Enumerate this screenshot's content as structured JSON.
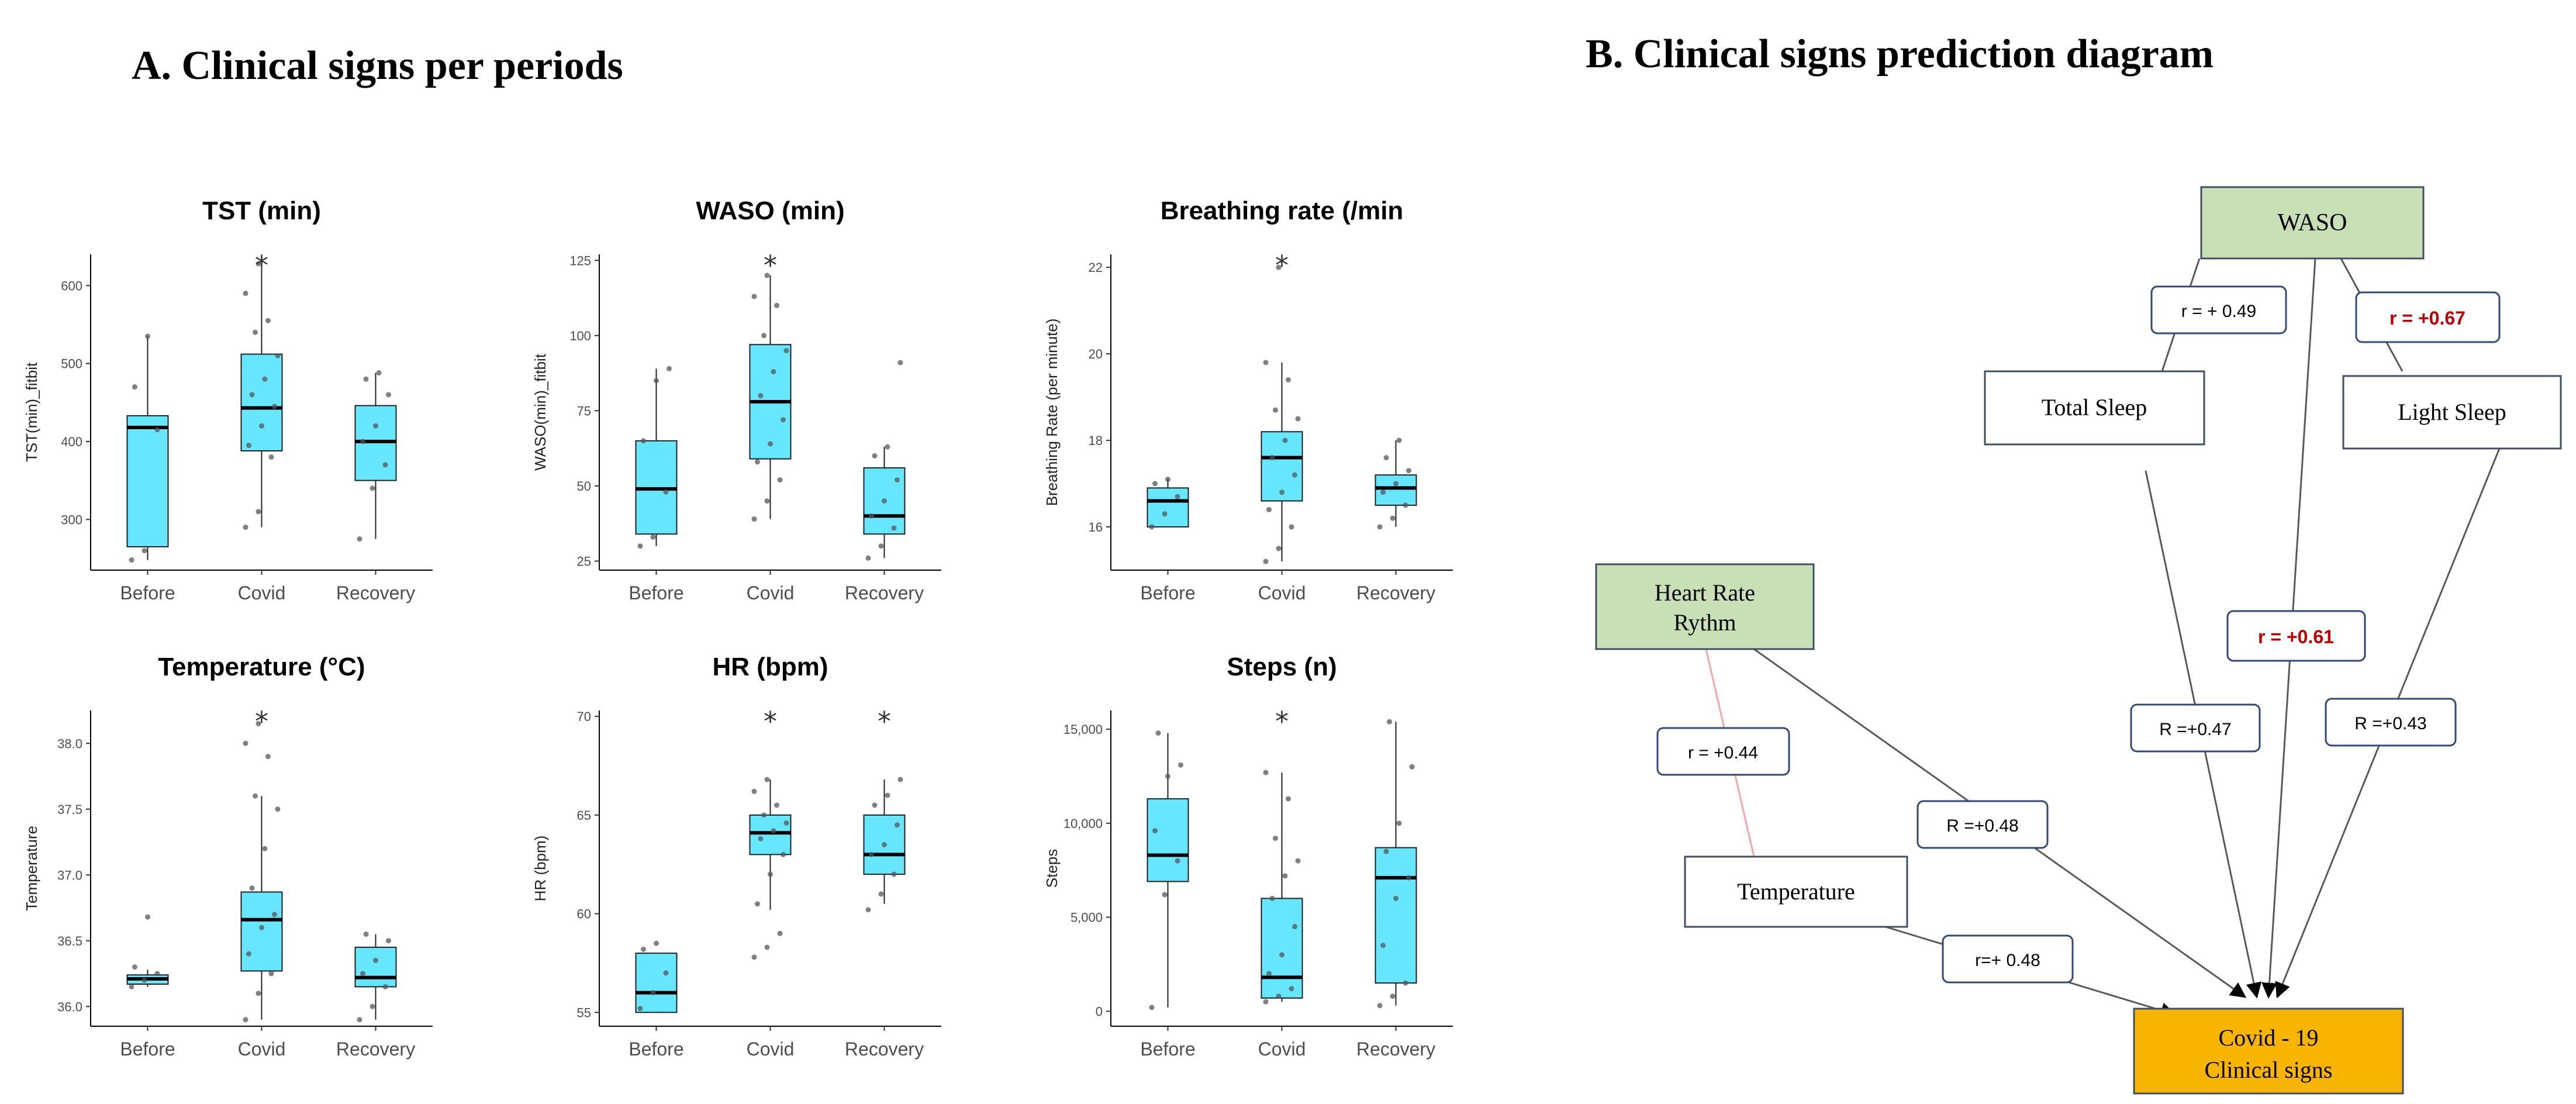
{
  "headings": {
    "a": "A. Clinical signs per periods",
    "b": "B. Clinical signs prediction diagram"
  },
  "chart_data": [
    {
      "type": "box",
      "title": "TST (min)",
      "ylabel": "TST(min)_fitbit",
      "categories": [
        "Before",
        "Covid",
        "Recovery"
      ],
      "ylim": [
        235,
        640
      ],
      "yticks": [
        300,
        400,
        500,
        600
      ],
      "yticklabels": [
        "300",
        "400",
        "500",
        "600"
      ],
      "boxes": [
        {
          "min": 248,
          "q1": 265,
          "median": 418,
          "q3": 433,
          "max": 535
        },
        {
          "min": 290,
          "q1": 388,
          "median": 443,
          "q3": 512,
          "max": 628
        },
        {
          "min": 275,
          "q1": 350,
          "median": 400,
          "q3": 446,
          "max": 488
        }
      ],
      "significant": [
        "Covid"
      ],
      "points": [
        [
          248,
          260,
          415,
          470,
          535
        ],
        [
          290,
          310,
          380,
          395,
          420,
          445,
          460,
          480,
          510,
          540,
          555,
          590,
          628
        ],
        [
          275,
          340,
          370,
          400,
          420,
          460,
          480,
          488
        ]
      ]
    },
    {
      "type": "box",
      "title": "WASO (min)",
      "ylabel": "WASO(min)_fitbit",
      "categories": [
        "Before",
        "Covid",
        "Recovery"
      ],
      "ylim": [
        22,
        127
      ],
      "yticks": [
        25,
        50,
        75,
        100,
        125
      ],
      "yticklabels": [
        "25",
        "50",
        "75",
        "100",
        "125"
      ],
      "boxes": [
        {
          "min": 30,
          "q1": 34,
          "median": 49,
          "q3": 65,
          "max": 89
        },
        {
          "min": 39,
          "q1": 59,
          "median": 78,
          "q3": 97,
          "max": 120
        },
        {
          "min": 26,
          "q1": 34,
          "median": 40,
          "q3": 56,
          "max": 63
        }
      ],
      "significant": [
        "Covid"
      ],
      "points": [
        [
          30,
          33,
          48,
          65,
          85,
          89
        ],
        [
          39,
          45,
          52,
          58,
          64,
          72,
          80,
          88,
          95,
          100,
          110,
          113,
          120
        ],
        [
          26,
          30,
          36,
          40,
          45,
          52,
          60,
          63,
          91
        ]
      ]
    },
    {
      "type": "box",
      "title": "Breathing rate (/min",
      "ylabel": "Breathing Rate (per minute)",
      "categories": [
        "Before",
        "Covid",
        "Recovery"
      ],
      "ylim": [
        15.0,
        22.3
      ],
      "yticks": [
        16,
        18,
        20,
        22
      ],
      "yticklabels": [
        "16",
        "18",
        "20",
        "22"
      ],
      "boxes": [
        {
          "min": 16.0,
          "q1": 16.0,
          "median": 16.6,
          "q3": 16.9,
          "max": 17.1
        },
        {
          "min": 15.2,
          "q1": 16.6,
          "median": 17.6,
          "q3": 18.2,
          "max": 19.8
        },
        {
          "min": 16.0,
          "q1": 16.5,
          "median": 16.9,
          "q3": 17.2,
          "max": 18.0
        }
      ],
      "significant": [
        "Covid"
      ],
      "points": [
        [
          16.0,
          16.3,
          16.7,
          17.0,
          17.1
        ],
        [
          15.2,
          15.5,
          16.0,
          16.4,
          16.8,
          17.2,
          17.6,
          18.0,
          18.5,
          18.7,
          19.4,
          19.8,
          22.0
        ],
        [
          16.0,
          16.2,
          16.5,
          16.8,
          17.0,
          17.3,
          17.6,
          18.0
        ]
      ]
    },
    {
      "type": "box",
      "title": "Temperature (°C)",
      "ylabel": "Temperature",
      "categories": [
        "Before",
        "Covid",
        "Recovery"
      ],
      "ylim": [
        35.85,
        38.25
      ],
      "yticks": [
        36.0,
        36.5,
        37.0,
        37.5,
        38.0
      ],
      "yticklabels": [
        "36.0",
        "36.5",
        "37.0",
        "37.5",
        "38.0"
      ],
      "boxes": [
        {
          "min": 36.15,
          "q1": 36.17,
          "median": 36.21,
          "q3": 36.24,
          "max": 36.28
        },
        {
          "min": 35.9,
          "q1": 36.27,
          "median": 36.66,
          "q3": 36.87,
          "max": 37.6
        },
        {
          "min": 35.9,
          "q1": 36.15,
          "median": 36.22,
          "q3": 36.45,
          "max": 36.55
        }
      ],
      "significant": [
        "Covid"
      ],
      "points": [
        [
          36.15,
          36.2,
          36.25,
          36.3,
          36.68
        ],
        [
          35.9,
          36.1,
          36.25,
          36.4,
          36.6,
          36.7,
          36.9,
          37.2,
          37.5,
          37.6,
          37.9,
          38.0,
          38.15
        ],
        [
          35.9,
          36.0,
          36.15,
          36.25,
          36.35,
          36.5,
          36.55
        ]
      ]
    },
    {
      "type": "box",
      "title": "HR (bpm)",
      "ylabel": "HR (bpm)",
      "categories": [
        "Before",
        "Covid",
        "Recovery"
      ],
      "ylim": [
        54.3,
        70.3
      ],
      "yticks": [
        55,
        60,
        65,
        70
      ],
      "yticklabels": [
        "55",
        "60",
        "65",
        "70"
      ],
      "boxes": [
        {
          "min": 55.0,
          "q1": 55.0,
          "median": 56.0,
          "q3": 58.0,
          "max": 58.0
        },
        {
          "min": 60.2,
          "q1": 63.0,
          "median": 64.1,
          "q3": 65.0,
          "max": 66.8
        },
        {
          "min": 60.5,
          "q1": 62.0,
          "median": 63.0,
          "q3": 65.0,
          "max": 66.8
        }
      ],
      "significant": [
        "Covid",
        "Recovery"
      ],
      "points": [
        [
          55.2,
          56.0,
          57.0,
          58.2,
          58.5
        ],
        [
          57.8,
          58.3,
          59.0,
          60.5,
          62.0,
          63.0,
          63.8,
          64.2,
          64.6,
          65.0,
          65.5,
          66.2,
          66.8
        ],
        [
          60.2,
          61.0,
          62.0,
          63.0,
          63.5,
          64.5,
          65.5,
          66.0,
          66.8
        ]
      ]
    },
    {
      "type": "box",
      "title": "Steps (n)",
      "ylabel": "Steps",
      "categories": [
        "Before",
        "Covid",
        "Recovery"
      ],
      "ylim": [
        -800,
        16000
      ],
      "yticks": [
        0,
        5000,
        10000,
        15000
      ],
      "yticklabels": [
        "0",
        "5,000",
        "10,000",
        "15,000"
      ],
      "boxes": [
        {
          "min": 200,
          "q1": 6900,
          "median": 8300,
          "q3": 11300,
          "max": 14800
        },
        {
          "min": 500,
          "q1": 700,
          "median": 1800,
          "q3": 6000,
          "max": 12700
        },
        {
          "min": 300,
          "q1": 1500,
          "median": 7100,
          "q3": 8700,
          "max": 15400
        }
      ],
      "significant": [
        "Covid"
      ],
      "points": [
        [
          200,
          6200,
          8000,
          9600,
          12500,
          13100,
          14800
        ],
        [
          500,
          800,
          1200,
          2000,
          3000,
          4500,
          6000,
          7200,
          8000,
          9200,
          11300,
          12700
        ],
        [
          300,
          800,
          1500,
          3500,
          6000,
          7100,
          8500,
          10000,
          13000,
          15400
        ]
      ]
    }
  ],
  "diagram": {
    "nodes": {
      "waso": "WASO",
      "total_sleep": "Total Sleep",
      "light_sleep": "Light Sleep",
      "heart_rate": [
        "Heart Rate",
        "Rythm"
      ],
      "temperature": "Temperature",
      "covid": [
        "Covid - 19",
        "Clinical signs"
      ]
    },
    "edges": {
      "waso_total": "r = + 0.49",
      "waso_light": "r = +0.67",
      "waso_covid": "r = +0.61",
      "total_covid": "R =+0.47",
      "light_covid": "R =+0.43",
      "hr_temp": "r = +0.44",
      "hr_covid": "R =+0.48",
      "temp_covid": "r=+ 0.48"
    },
    "colors": {
      "source": "#c8e0b5",
      "target": "#f7b500",
      "highlight": "#c00000",
      "box_fill": "#66e7ff"
    }
  }
}
